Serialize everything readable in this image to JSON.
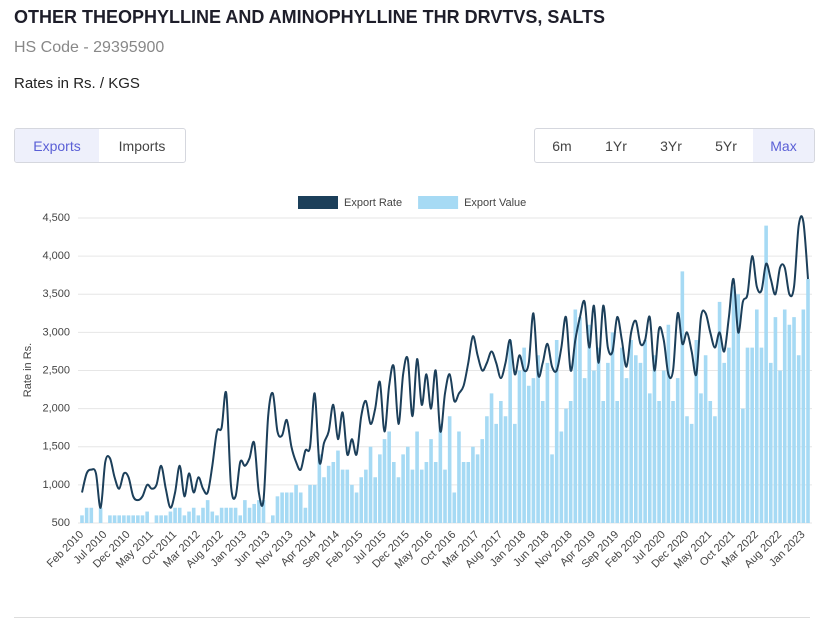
{
  "header": {
    "title": "OTHER THEOPHYLLINE AND AMINOPHYLLINE THR DRVTVS, SALTS",
    "hs_code": "HS Code - 29395900",
    "rates": "Rates in Rs. / KGS"
  },
  "tabs": [
    "Exports",
    "Imports"
  ],
  "ranges": [
    "6m",
    "1Yr",
    "3Yr",
    "5Yr",
    "Max"
  ],
  "chart_data": {
    "type": "line_bar",
    "y_label": "Rate in Rs.",
    "categories": [
      "Feb 2010",
      null,
      null,
      null,
      null,
      "Jul 2010",
      null,
      null,
      null,
      null,
      "Dec 2010",
      null,
      null,
      null,
      null,
      "May 2011",
      null,
      null,
      null,
      null,
      "Oct 2011",
      null,
      null,
      null,
      null,
      "Mar 2012",
      null,
      null,
      null,
      null,
      "Aug 2012",
      null,
      null,
      null,
      null,
      "Jan 2013",
      null,
      null,
      null,
      null,
      "Jun 2013",
      null,
      null,
      null,
      null,
      "Nov 2013",
      null,
      null,
      null,
      null,
      "Apr 2014",
      null,
      null,
      null,
      null,
      "Sep 2014",
      null,
      null,
      null,
      null,
      "Feb 2015",
      null,
      null,
      null,
      null,
      "Jul 2015",
      null,
      null,
      null,
      null,
      "Dec 2015",
      null,
      null,
      null,
      null,
      "May 2016",
      null,
      null,
      null,
      null,
      "Oct 2016",
      null,
      null,
      null,
      null,
      "Mar 2017",
      null,
      null,
      null,
      null,
      "Aug 2017",
      null,
      null,
      null,
      null,
      "Jan 2018",
      null,
      null,
      null,
      null,
      "Jun 2018",
      null,
      null,
      null,
      null,
      "Nov 2018",
      null,
      null,
      null,
      null,
      "Apr 2019",
      null,
      null,
      null,
      null,
      "Sep 2019",
      null,
      null,
      null,
      null,
      "Feb 2020",
      null,
      null,
      null,
      null,
      "Jul 2020",
      null,
      null,
      null,
      null,
      "Dec 2020",
      null,
      null,
      null,
      null,
      "May 2021",
      null,
      null,
      null,
      null,
      "Oct 2021",
      null,
      null,
      null,
      null,
      "Mar 2022",
      null,
      null,
      null,
      null,
      "Aug 2022",
      null,
      null,
      null,
      null,
      "Jan 2023",
      null
    ],
    "series": [
      {
        "name": "Export Rate",
        "kind": "line",
        "color": "#1c3f5a",
        "values": [
          900,
          1150,
          1200,
          1150,
          700,
          1300,
          1350,
          1100,
          950,
          1150,
          1100,
          850,
          800,
          850,
          1000,
          950,
          1000,
          1250,
          950,
          700,
          900,
          1250,
          850,
          1150,
          900,
          1100,
          950,
          900,
          1250,
          1700,
          1750,
          2200,
          1000,
          850,
          1300,
          1250,
          1350,
          1550,
          900,
          800,
          1900,
          2200,
          1700,
          1650,
          1850,
          1500,
          1300,
          1200,
          1450,
          1500,
          2200,
          1300,
          1550,
          1700,
          2050,
          1600,
          1950,
          1400,
          1600,
          1400,
          1900,
          2100,
          1800,
          2000,
          2350,
          1700,
          2300,
          2550,
          1800,
          2450,
          2650,
          1900,
          2650,
          2050,
          2450,
          2000,
          2500,
          1700,
          2200,
          2450,
          2100,
          2200,
          2300,
          2600,
          2950,
          2700,
          2500,
          2600,
          2750,
          2600,
          2400,
          2600,
          2900,
          2450,
          2700,
          2500,
          2600,
          3250,
          2450,
          2600,
          2850,
          2550,
          2500,
          2800,
          3200,
          2500,
          2900,
          3200,
          3400,
          2800,
          3350,
          2600,
          3350,
          2800,
          2750,
          3200,
          2900,
          2550,
          3000,
          3150,
          2850,
          2900,
          3200,
          2500,
          3050,
          2900,
          2450,
          2500,
          3250,
          2850,
          3000,
          2750,
          2450,
          3200,
          3250,
          3000,
          2800,
          3000,
          2750,
          3200,
          3700,
          3000,
          3400,
          3500,
          4000,
          3600,
          3550,
          3900,
          3700,
          3500,
          3850,
          3850,
          3500,
          3600,
          4400,
          4450,
          3700
        ]
      },
      {
        "name": "Export Value",
        "kind": "bar",
        "color": "#a6daf4",
        "values": [
          600,
          700,
          700,
          null,
          700,
          null,
          600,
          600,
          600,
          600,
          600,
          600,
          600,
          600,
          650,
          null,
          600,
          600,
          600,
          650,
          700,
          700,
          600,
          650,
          700,
          600,
          700,
          800,
          650,
          600,
          700,
          700,
          700,
          700,
          600,
          800,
          700,
          750,
          800,
          800,
          null,
          600,
          850,
          900,
          900,
          900,
          1000,
          900,
          700,
          1000,
          1000,
          1400,
          1100,
          1250,
          1300,
          1450,
          1200,
          1200,
          1000,
          900,
          1100,
          1200,
          1500,
          1100,
          1400,
          1600,
          1700,
          1300,
          1100,
          1400,
          1500,
          1200,
          1700,
          1200,
          1300,
          1600,
          1300,
          1800,
          1200,
          1900,
          900,
          1700,
          1300,
          1300,
          1500,
          1400,
          1600,
          1900,
          2200,
          1800,
          2100,
          1900,
          2900,
          1800,
          2500,
          2800,
          2300,
          2400,
          2700,
          2100,
          2600,
          1400,
          2900,
          1700,
          2000,
          2100,
          3300,
          3200,
          2400,
          3100,
          2500,
          2800,
          2100,
          2600,
          3000,
          2100,
          2800,
          2400,
          2900,
          2700,
          2600,
          2900,
          2200,
          2700,
          2100,
          2500,
          3100,
          2100,
          2400,
          3800,
          1900,
          1800,
          2900,
          2200,
          2700,
          2100,
          1900,
          3400,
          2600,
          2800,
          3600,
          3500,
          2000,
          2800,
          2800,
          3300,
          2800,
          4400,
          2600,
          3200,
          2500,
          3300,
          3100,
          3200,
          2700,
          3300,
          3700
        ]
      }
    ],
    "ylim": [
      500,
      4500
    ],
    "yticks": [
      500,
      {
        "value": 1000,
        "label": "1,000"
      },
      {
        "value": 1500,
        "label": "1,500"
      },
      {
        "value": 2000,
        "label": "2,000"
      },
      {
        "value": 2500,
        "label": "2,500"
      },
      {
        "value": 3000,
        "label": "3,000"
      },
      {
        "value": 3500,
        "label": "3,500"
      },
      {
        "value": 4000,
        "label": "4,000"
      },
      {
        "value": 4500,
        "label": "4,500"
      }
    ],
    "grid": true,
    "legend": "top"
  }
}
